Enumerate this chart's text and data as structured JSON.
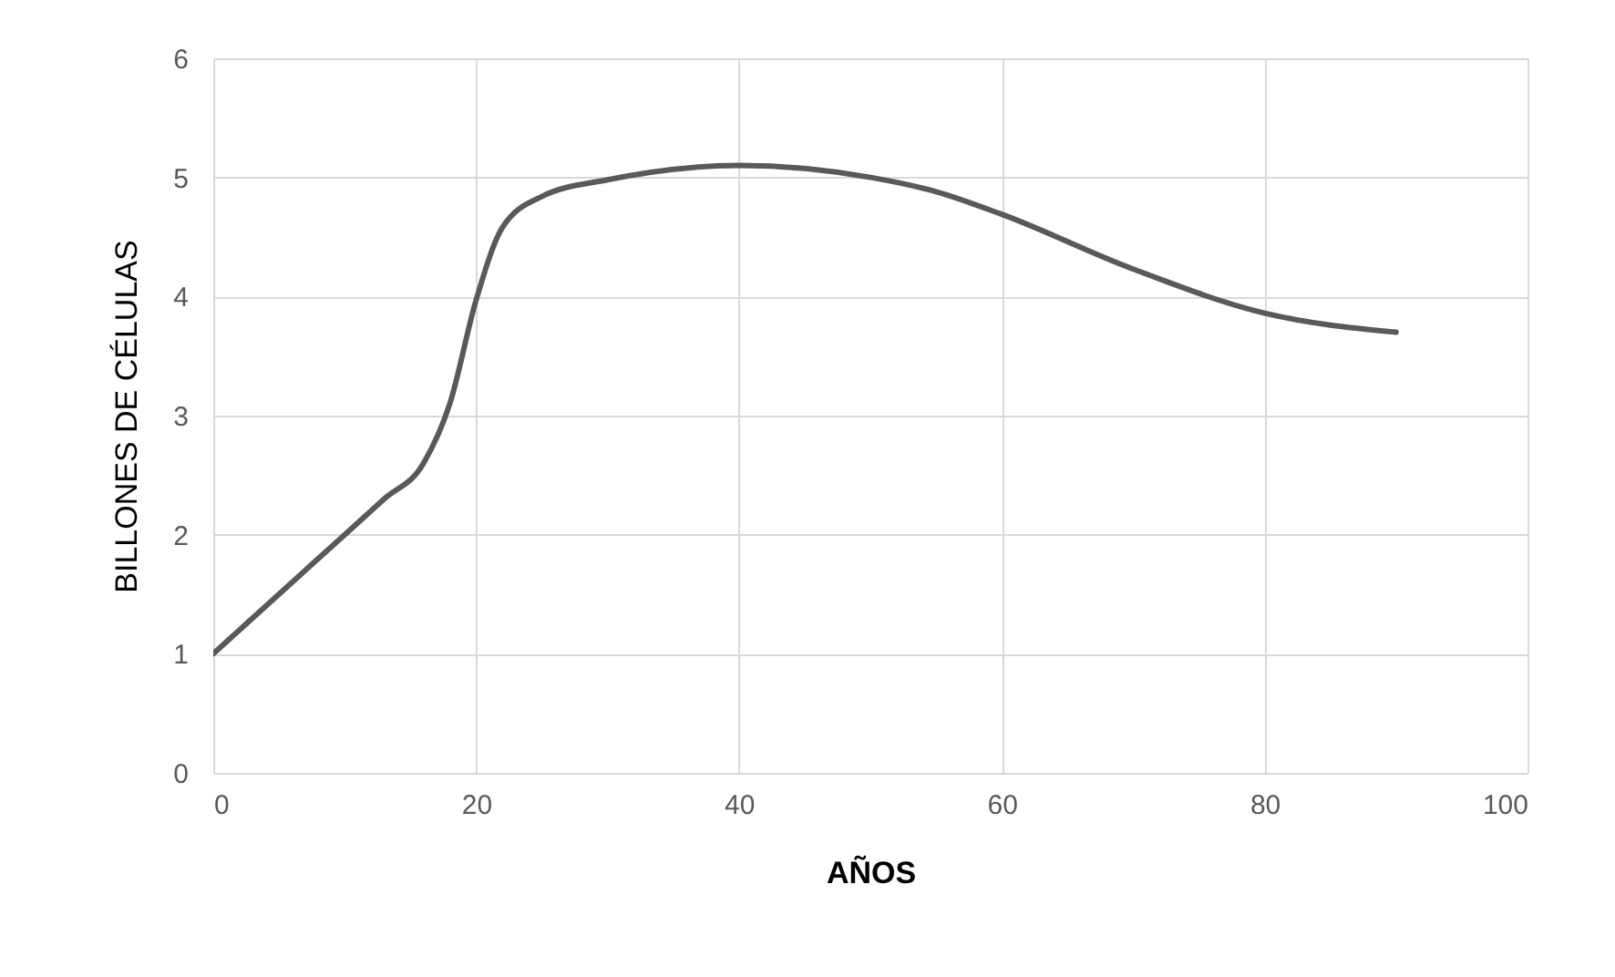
{
  "chart_data": {
    "type": "line",
    "xlabel": "AÑOS",
    "ylabel": "BILLONES DE CÉLULAS",
    "x": [
      0,
      5,
      10,
      13,
      16,
      18,
      20,
      22,
      25,
      30,
      40,
      50,
      55,
      60,
      70,
      80,
      90
    ],
    "series": [
      {
        "color": "#595959",
        "values": [
          1.0,
          1.5,
          2.0,
          2.3,
          2.6,
          3.1,
          3.97,
          4.58,
          4.84,
          4.98,
          5.1,
          5.0,
          4.88,
          4.69,
          4.23,
          3.86,
          3.7
        ]
      }
    ],
    "xlim": [
      0,
      100
    ],
    "xticks": [
      0,
      20,
      40,
      60,
      80,
      100
    ],
    "ylim": [
      0,
      6
    ],
    "yticks": [
      0,
      1,
      2,
      3,
      4,
      5,
      6
    ],
    "grid": true,
    "marker": "none",
    "line_style": "solid"
  }
}
